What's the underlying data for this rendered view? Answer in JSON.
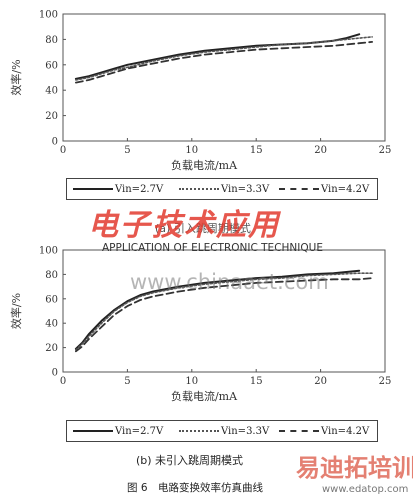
{
  "charts": {
    "top": {
      "legend": {
        "entries": [
          "Vin=2.7V",
          "Vin=3.3V",
          "Vin=4.2V"
        ]
      },
      "caption": "(a) 引入跳周期模式"
    },
    "bottom": {
      "legend": {
        "entries": [
          "Vin=2.7V",
          "Vin=3.3V",
          "Vin=4.2V"
        ]
      },
      "caption": "(b) 未引入跳周期模式"
    }
  },
  "figure_caption": "图 6　电路变换效率仿真曲线",
  "watermarks": {
    "brand": "电子技术应用",
    "sub": "APPLICATION OF ELECTRONIC TECHNIQUE",
    "url": "www.chinaaet.com",
    "corner": "易迪拓培训",
    "corner_url": "www.edatop.com"
  },
  "chart_data": [
    {
      "type": "line",
      "title": "",
      "xlabel": "负载电流/mA",
      "ylabel": "效率/%",
      "xlim": [
        0,
        25
      ],
      "ylim": [
        0,
        100
      ],
      "xticks": [
        0,
        5,
        10,
        15,
        20,
        25
      ],
      "yticks": [
        0,
        20,
        40,
        60,
        80,
        100
      ],
      "grid": false,
      "series": [
        {
          "name": "Vin=2.7V",
          "style": "solid",
          "color": "#222222",
          "x": [
            1,
            2,
            3,
            4,
            5,
            7,
            9,
            11,
            13,
            15,
            17,
            19,
            21,
            22,
            23
          ],
          "y": [
            49,
            51,
            54,
            57,
            60,
            64,
            68,
            71,
            73,
            75,
            76,
            77,
            79,
            81,
            84
          ]
        },
        {
          "name": "Vin=3.3V",
          "style": "dotted",
          "color": "#555555",
          "x": [
            1,
            2,
            3,
            4,
            5,
            7,
            9,
            11,
            13,
            15,
            17,
            19,
            21,
            22,
            23,
            24
          ],
          "y": [
            48,
            50,
            53,
            56,
            58,
            63,
            67,
            70,
            72,
            74,
            76,
            77,
            79,
            80,
            81,
            82
          ]
        },
        {
          "name": "Vin=4.2V",
          "style": "dashed",
          "color": "#333333",
          "x": [
            1,
            2,
            3,
            4,
            5,
            7,
            9,
            11,
            13,
            15,
            17,
            19,
            21,
            22,
            23,
            24
          ],
          "y": [
            46,
            48,
            51,
            54,
            57,
            61,
            65,
            68,
            70,
            72,
            73,
            74,
            75,
            76,
            77,
            78
          ]
        }
      ]
    },
    {
      "type": "line",
      "title": "",
      "xlabel": "负载电流/mA",
      "ylabel": "效率/%",
      "xlim": [
        0,
        25
      ],
      "ylim": [
        0,
        100
      ],
      "xticks": [
        0,
        5,
        10,
        15,
        20,
        25
      ],
      "yticks": [
        0,
        20,
        40,
        60,
        80,
        100
      ],
      "grid": false,
      "series": [
        {
          "name": "Vin=2.7V",
          "style": "solid",
          "color": "#222222",
          "x": [
            1,
            1.5,
            2,
            3,
            4,
            5,
            6,
            7,
            9,
            11,
            13,
            15,
            17,
            19,
            21,
            23
          ],
          "y": [
            19,
            24,
            31,
            42,
            51,
            58,
            63,
            66,
            70,
            73,
            75,
            77,
            78,
            80,
            81,
            83
          ]
        },
        {
          "name": "Vin=3.3V",
          "style": "dotted",
          "color": "#555555",
          "x": [
            1,
            1.5,
            2,
            3,
            4,
            5,
            6,
            7,
            9,
            11,
            13,
            15,
            17,
            19,
            21,
            23,
            24
          ],
          "y": [
            18,
            23,
            29,
            40,
            50,
            57,
            62,
            65,
            69,
            72,
            74,
            76,
            77,
            79,
            80,
            81,
            81
          ]
        },
        {
          "name": "Vin=4.2V",
          "style": "dashed",
          "color": "#333333",
          "x": [
            1,
            1.5,
            2,
            3,
            4,
            5,
            6,
            7,
            9,
            11,
            13,
            15,
            17,
            19,
            21,
            23,
            24
          ],
          "y": [
            17,
            21,
            27,
            37,
            47,
            54,
            59,
            62,
            66,
            69,
            71,
            73,
            74,
            75,
            76,
            76,
            77
          ]
        }
      ]
    }
  ]
}
